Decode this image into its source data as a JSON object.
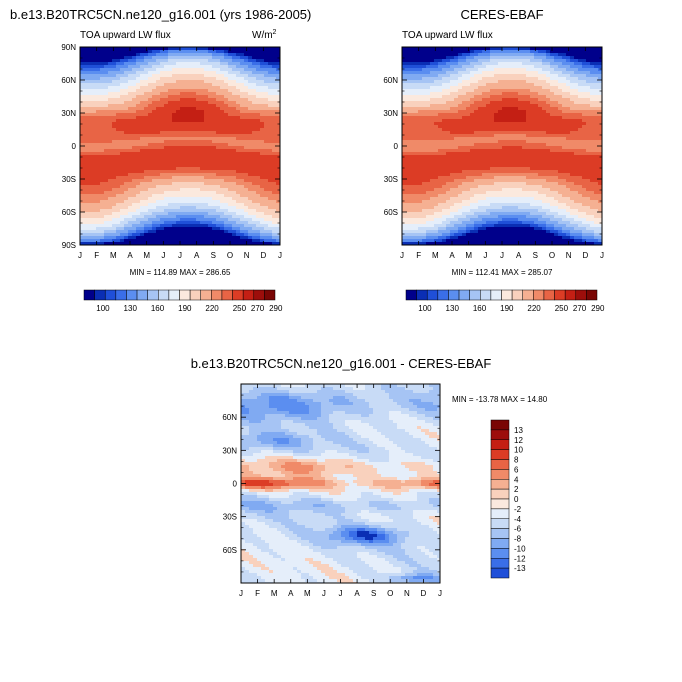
{
  "colormap": [
    "#00008b",
    "#0a2eb4",
    "#1f4fd8",
    "#3a6ee8",
    "#5b8ef0",
    "#80aaf2",
    "#a6c4f4",
    "#c8dbf6",
    "#e5eefa",
    "#fbe9de",
    "#f9d1bd",
    "#f5b092",
    "#f08a68",
    "#e86445",
    "#dc3c25",
    "#c41f14",
    "#9d0e0b",
    "#7a0604"
  ],
  "months": [
    "J",
    "F",
    "M",
    "A",
    "M",
    "J",
    "J",
    "A",
    "S",
    "O",
    "N",
    "D",
    "J"
  ],
  "panels": [
    {
      "title": "b.e13.B20TRC5CN.ne120_g16.001 (yrs 1986-2005)",
      "left_label": "TOA upward LW flux",
      "units": "W/m",
      "units_sup": "2",
      "yticks": [
        "90N",
        "60N",
        "30N",
        "0",
        "30S",
        "60S",
        "90S"
      ],
      "minmax": "MIN = 114.89 MAX = 286.65",
      "colorbar_labels": [
        "100",
        "130",
        "160",
        "190",
        "220",
        "250",
        "270",
        "290"
      ],
      "min": 114.89,
      "max": 286.65
    },
    {
      "title": "CERES-EBAF",
      "left_label": "TOA upward LW flux",
      "yticks": [
        "60N",
        "30N",
        "0",
        "30S",
        "60S"
      ],
      "minmax": "MIN = 112.41 MAX = 285.07",
      "colorbar_labels": [
        "100",
        "130",
        "160",
        "190",
        "220",
        "250",
        "270",
        "290"
      ],
      "min": 112.41,
      "max": 285.07
    },
    {
      "title": "b.e13.B20TRC5CN.ne120_g16.001 - CERES-EBAF",
      "yticks": [
        "60N",
        "30N",
        "0",
        "30S",
        "60S"
      ],
      "minmax": "MIN = -13.78 MAX =  14.80",
      "colorbar_labels": [
        "13",
        "12",
        "10",
        "8",
        "6",
        "4",
        "2",
        "0",
        "-2",
        "-4",
        "-6",
        "-8",
        "-10",
        "-12",
        "-13"
      ],
      "min": -13.78,
      "max": 14.8
    }
  ],
  "chart_data": [
    {
      "type": "heatmap",
      "title": "b.e13.B20TRC5CN.ne120_g16.001 (yrs 1986-2005)",
      "variable": "TOA upward LW flux",
      "units": "W/m2",
      "x": [
        "J",
        "F",
        "M",
        "A",
        "M",
        "J",
        "J",
        "A",
        "S",
        "O",
        "N",
        "D",
        "J"
      ],
      "y": [
        "90N",
        "60N",
        "30N",
        "0",
        "30S",
        "60S",
        "90S"
      ],
      "ylim": [
        -90,
        90
      ],
      "min": 114.89,
      "max": 286.65,
      "colorbar": [
        100,
        130,
        160,
        190,
        220,
        250,
        270,
        290
      ]
    },
    {
      "type": "heatmap",
      "title": "CERES-EBAF",
      "variable": "TOA upward LW flux",
      "x": [
        "J",
        "F",
        "M",
        "A",
        "M",
        "J",
        "J",
        "A",
        "S",
        "O",
        "N",
        "D",
        "J"
      ],
      "y": [
        "60N",
        "30N",
        "0",
        "30S",
        "60S"
      ],
      "ylim": [
        -90,
        90
      ],
      "min": 112.41,
      "max": 285.07,
      "colorbar": [
        100,
        130,
        160,
        190,
        220,
        250,
        270,
        290
      ]
    },
    {
      "type": "heatmap",
      "title": "b.e13.B20TRC5CN.ne120_g16.001 - CERES-EBAF",
      "x": [
        "J",
        "F",
        "M",
        "A",
        "M",
        "J",
        "J",
        "A",
        "S",
        "O",
        "N",
        "D",
        "J"
      ],
      "y": [
        "60N",
        "30N",
        "0",
        "30S",
        "60S"
      ],
      "ylim": [
        -90,
        90
      ],
      "min": -13.78,
      "max": 14.8,
      "colorbar": [
        13,
        12,
        10,
        8,
        6,
        4,
        2,
        0,
        -2,
        -4,
        -6,
        -8,
        -10,
        -12,
        -13
      ]
    }
  ]
}
